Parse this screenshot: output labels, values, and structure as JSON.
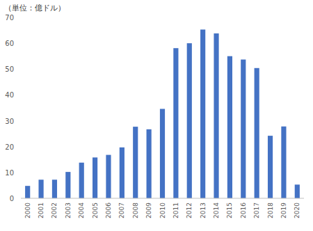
{
  "chart_data": {
    "type": "bar",
    "y_label": "（単位：億ドル）",
    "categories": [
      "2000",
      "2001",
      "2002",
      "2003",
      "2004",
      "2005",
      "2006",
      "2007",
      "2008",
      "2009",
      "2010",
      "2011",
      "2012",
      "2013",
      "2014",
      "2015",
      "2016",
      "2017",
      "2018",
      "2019",
      "2020"
    ],
    "values": [
      4.8,
      7.2,
      7.2,
      10.2,
      13.8,
      15.8,
      16.8,
      19.7,
      27.7,
      26.7,
      34.6,
      58.1,
      60.0,
      65.3,
      63.8,
      55.0,
      53.7,
      50.4,
      24.2,
      27.8,
      5.3
    ],
    "color": "#4472c4",
    "ylim": [
      0,
      70
    ],
    "yticks": [
      0,
      10,
      20,
      30,
      40,
      50,
      60,
      70
    ],
    "grid": false
  }
}
